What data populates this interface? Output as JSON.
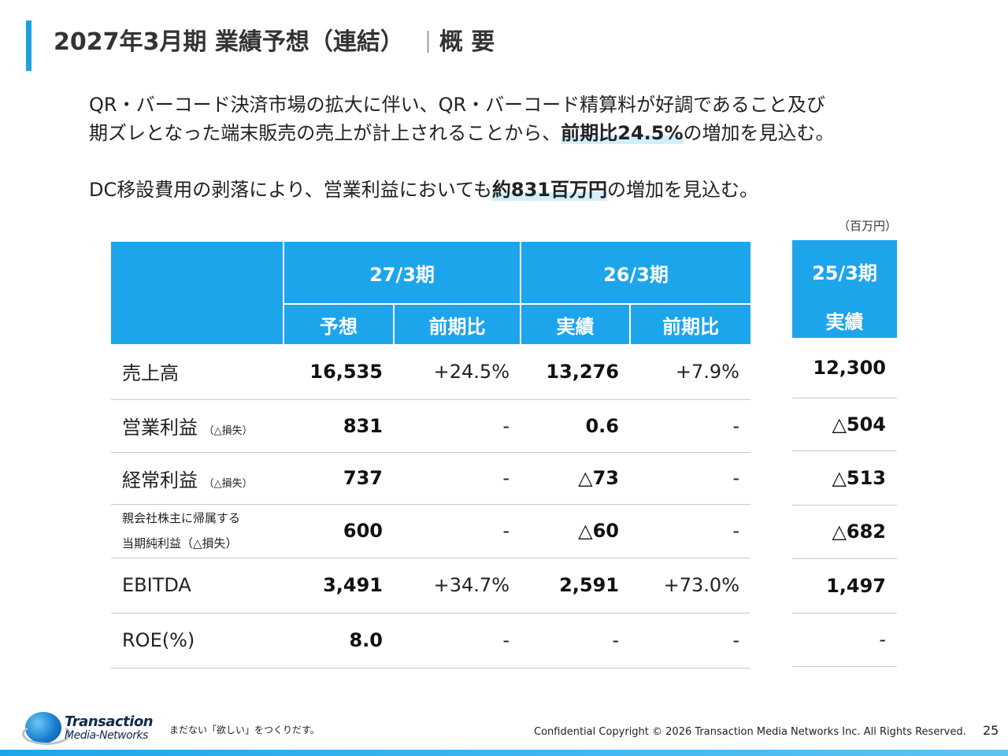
{
  "header": {
    "title": "2027年3月期 業績予想（連結）",
    "subtitle": "概 要"
  },
  "summary": {
    "line1": "QR・バーコード決済市場の拡大に伴い、QR・バーコード精算料が好調であること及び",
    "line2_pre": "期ズレとなった端末販売の売上が計上されることから、",
    "line2_hl": "前期比24.5%",
    "line2_post": "の増加を見込む。",
    "line3_pre": "DC移設費用の剥落により、営業利益においても",
    "line3_hl": "約831百万円",
    "line3_post": "の増加を見込む。"
  },
  "unit_label": "（百万円）",
  "table": {
    "period_fy27": "27/3期",
    "period_fy26": "26/3期",
    "period_fy25": "25/3期",
    "col_forecast": "予想",
    "col_yoy": "前期比",
    "col_actual": "実績",
    "col_yoy2": "前期比",
    "col_actual_prev": "実績",
    "rows": [
      {
        "label": "売上高",
        "note": "",
        "fy27": "16,535",
        "fy27_yoy": "+24.5%",
        "fy26": "13,276",
        "fy26_yoy": "+7.9%",
        "fy25": "12,300"
      },
      {
        "label": "営業利益",
        "note": "（△損失）",
        "fy27": "831",
        "fy27_yoy": "-",
        "fy26": "0.6",
        "fy26_yoy": "-",
        "fy25": "△504"
      },
      {
        "label": "経常利益",
        "note": "（△損失）",
        "fy27": "737",
        "fy27_yoy": "-",
        "fy26": "△73",
        "fy26_yoy": "-",
        "fy25": "△513"
      },
      {
        "label": "親会社株主に帰属する",
        "note": "当期純利益（△損失）",
        "fy27": "600",
        "fy27_yoy": "-",
        "fy26": "△60",
        "fy26_yoy": "-",
        "fy25": "△682"
      },
      {
        "label": "EBITDA",
        "note": "",
        "fy27": "3,491",
        "fy27_yoy": "+34.7%",
        "fy26": "2,591",
        "fy26_yoy": "+73.0%",
        "fy25": "1,497"
      },
      {
        "label": "ROE(%)",
        "note": "",
        "fy27": "8.0",
        "fy27_yoy": "-",
        "fy26": "-",
        "fy26_yoy": "-",
        "fy25": "-"
      }
    ]
  },
  "footer": {
    "logo_line1": "Transaction",
    "logo_line2": "Media-Networks",
    "tagline": "まだない「欲しい」をつくりだす。",
    "copyright": "Confidential  Copyright © 2026 Transaction Media Networks Inc. All Rights Reserved.",
    "page_number": "25"
  },
  "colors": {
    "accent": "#1da5ec",
    "header_bg": "#1da5ec",
    "highlight": "#d3eefb"
  }
}
